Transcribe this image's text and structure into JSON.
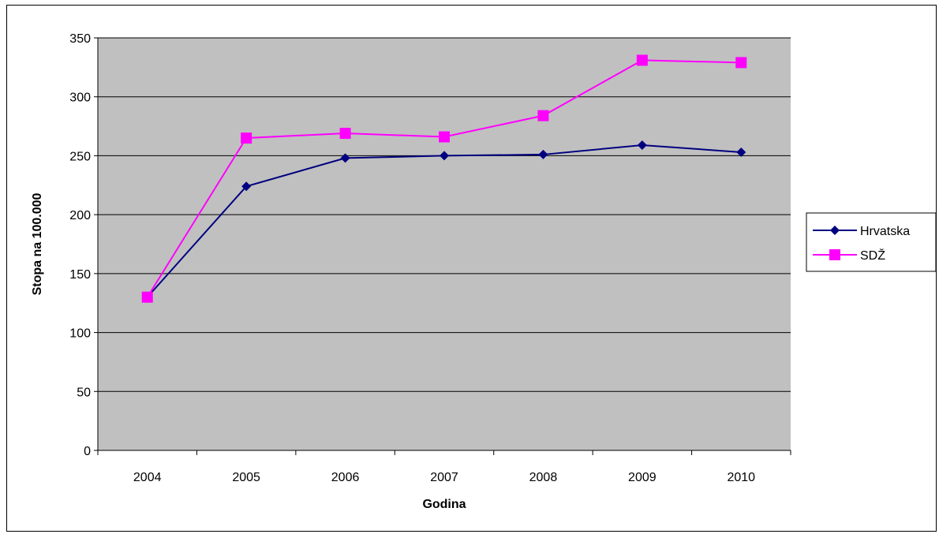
{
  "chart_data": {
    "type": "line",
    "title": "",
    "xlabel": "Godina",
    "ylabel": "Stopa na 100.000",
    "categories": [
      "2004",
      "2005",
      "2006",
      "2007",
      "2008",
      "2009",
      "2010"
    ],
    "ylim": [
      0,
      350
    ],
    "yticks": [
      0,
      50,
      100,
      150,
      200,
      250,
      300,
      350
    ],
    "grid": true,
    "legend_position": "right",
    "series": [
      {
        "name": "Hrvatska",
        "values": [
          130,
          224,
          248,
          250,
          251,
          259,
          253
        ],
        "color": "#000080",
        "marker": "diamond"
      },
      {
        "name": "SDŽ",
        "values": [
          130,
          265,
          269,
          266,
          284,
          331,
          329
        ],
        "color": "#FF00FF",
        "marker": "square"
      }
    ],
    "plot_background": "#C0C0C0"
  }
}
